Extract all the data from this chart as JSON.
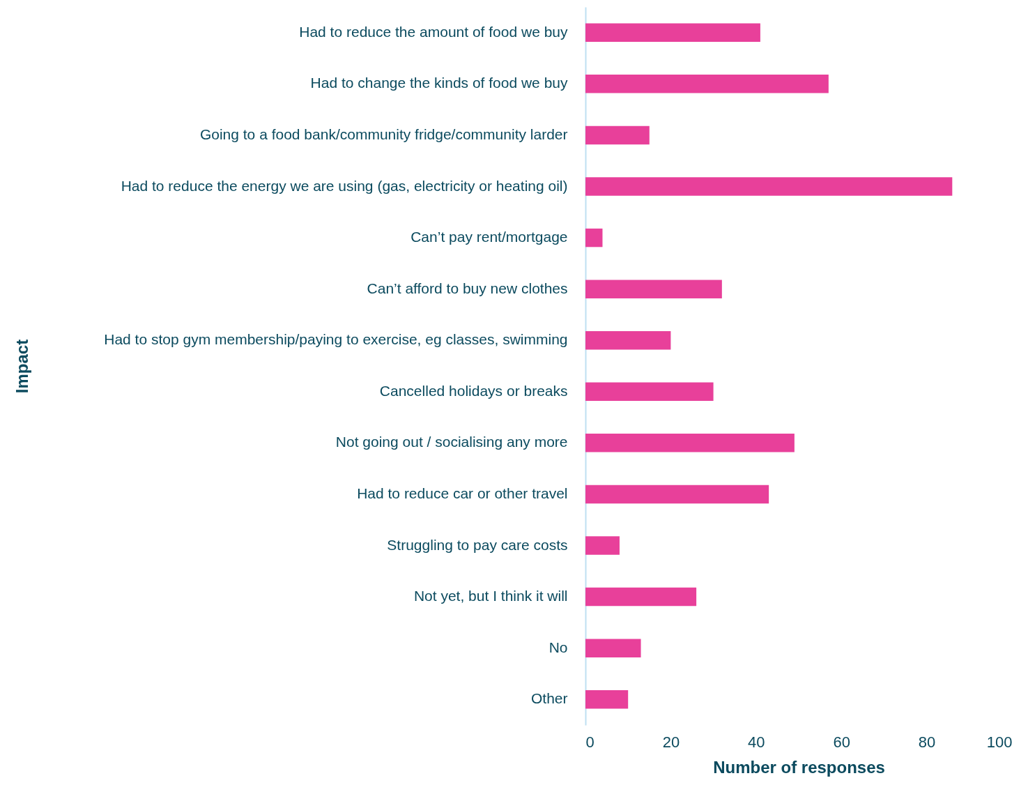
{
  "chart_data": {
    "type": "bar",
    "orientation": "horizontal",
    "xlabel": "Number of responses",
    "ylabel": "Impact",
    "categories": [
      "Had to reduce the amount of food we buy",
      "Had to change the kinds of food we buy",
      "Going to a food bank/community fridge/community larder",
      "Had to reduce the energy we are using (gas, electricity or heating oil)",
      "Can’t pay rent/mortgage",
      "Can’t afford to buy new clothes",
      "Had to stop gym membership/paying to exercise, eg classes, swimming",
      "Cancelled holidays or breaks",
      "Not going out / socialising any more",
      "Had to reduce car or other travel",
      "Struggling to pay care costs",
      "Not yet, but I think it will",
      "No",
      "Other"
    ],
    "values": [
      41,
      57,
      15,
      86,
      4,
      32,
      20,
      30,
      49,
      43,
      8,
      26,
      13,
      10
    ],
    "color": "#e8409a",
    "xlim": [
      0,
      100
    ],
    "xticks": [
      0,
      20,
      40,
      60,
      80,
      100
    ],
    "grid": false
  }
}
